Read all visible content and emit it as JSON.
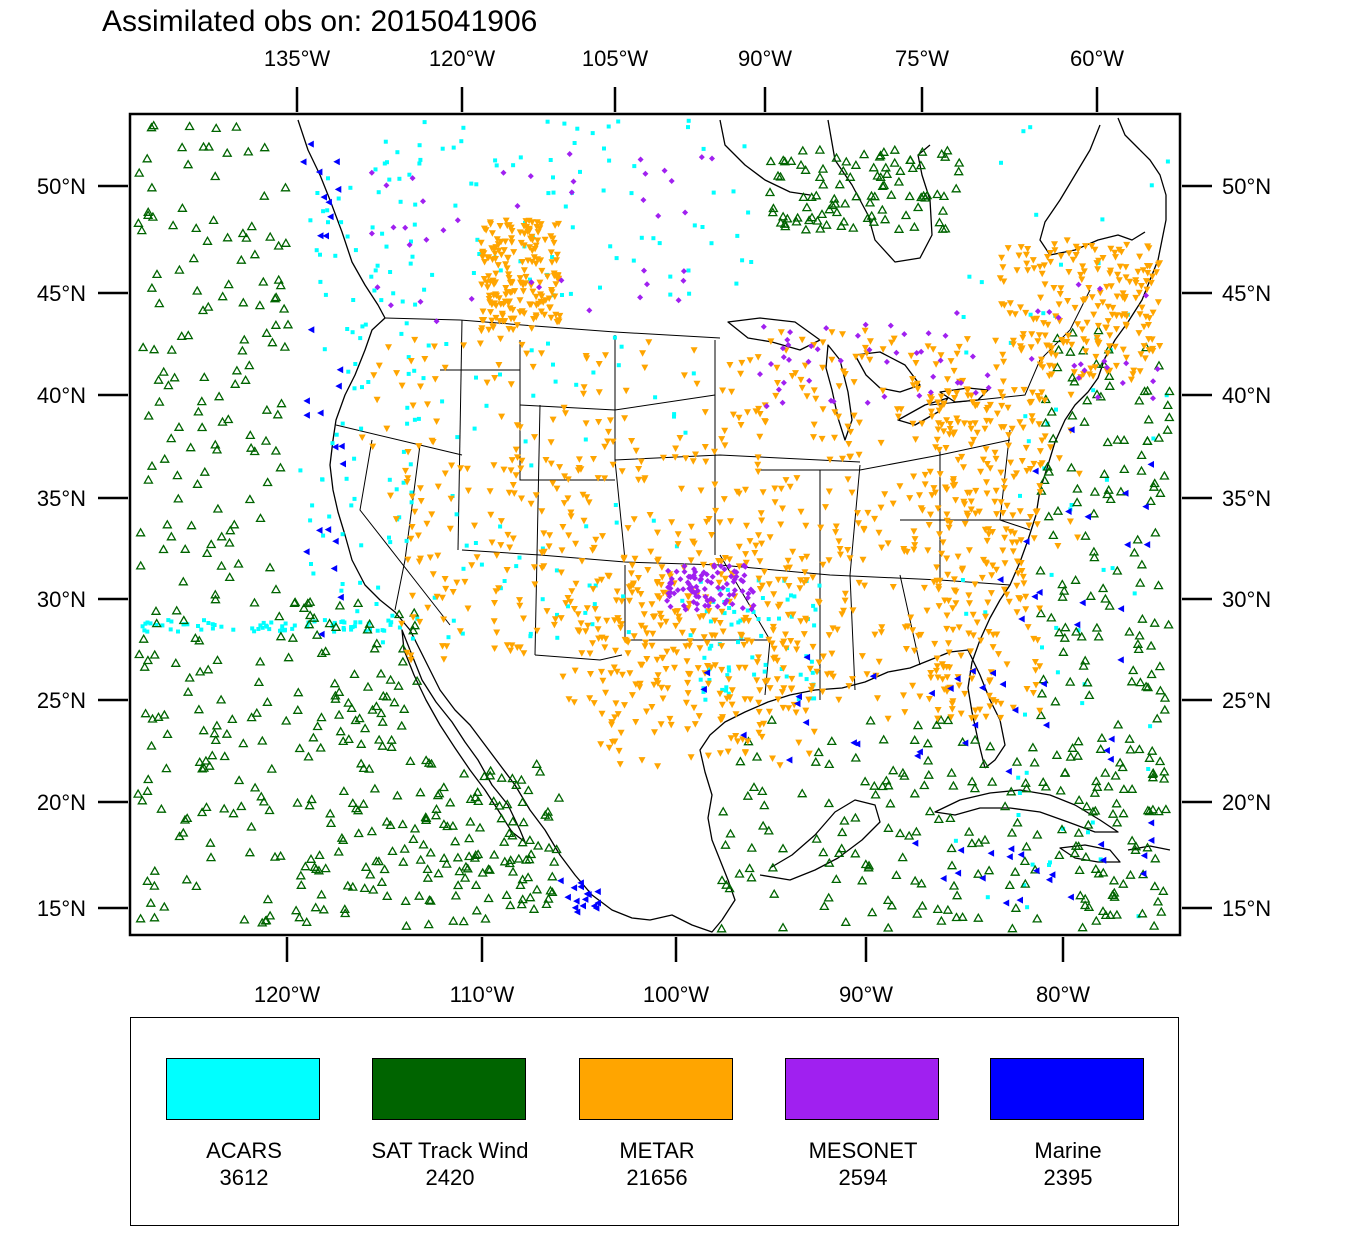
{
  "title": "Assimilated obs on: 2015041906",
  "top_lon_labels": [
    "135°W",
    "120°W",
    "105°W",
    "90°W",
    "75°W",
    "60°W"
  ],
  "bottom_lon_labels": [
    "120°W",
    "110°W",
    "100°W",
    "90°W",
    "80°W"
  ],
  "lat_labels": [
    "50°N",
    "45°N",
    "40°N",
    "35°N",
    "30°N",
    "25°N",
    "20°N",
    "15°N"
  ],
  "legend": [
    {
      "name": "ACARS",
      "count": "3612",
      "color": "#00ffff",
      "marker": "square"
    },
    {
      "name": "SAT Track Wind",
      "count": "2420",
      "color": "#006400",
      "marker": "triangle-up-open"
    },
    {
      "name": "METAR",
      "count": "21656",
      "color": "#ffa500",
      "marker": "triangle-down"
    },
    {
      "name": "MESONET",
      "count": "2594",
      "color": "#a020f0",
      "marker": "diamond"
    },
    {
      "name": "Marine",
      "count": "2395",
      "color": "#0000ff",
      "marker": "triangle-left"
    }
  ],
  "colors": {
    "background": "#ffffff",
    "coastline": "#000000"
  }
}
